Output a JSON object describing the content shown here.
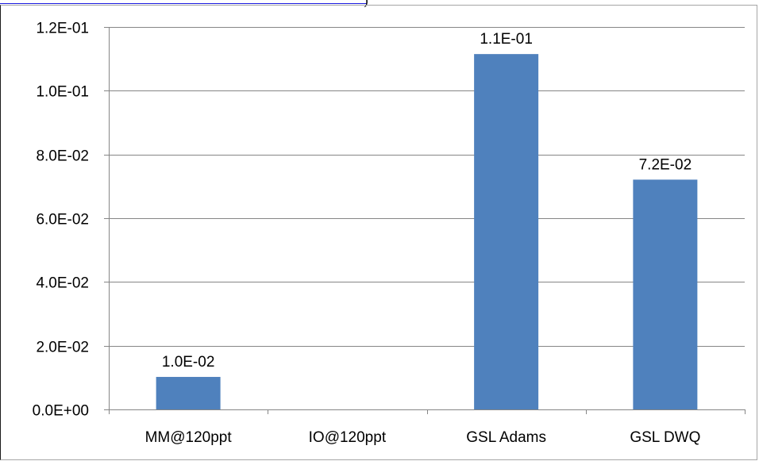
{
  "chart_data": {
    "type": "bar",
    "categories": [
      "MM@120ppt",
      "IO@120ppt",
      "GSL Adams",
      "GSL DWQ"
    ],
    "values": [
      0.0102,
      0,
      0.1115,
      0.0721
    ],
    "data_labels": [
      "1.0E-02",
      "",
      "1.1E-01",
      "7.2E-02"
    ],
    "y_ticks": [
      0,
      0.02,
      0.04,
      0.06,
      0.08,
      0.1,
      0.12
    ],
    "y_tick_labels": [
      "0.0E+00",
      "2.0E-02",
      "4.0E-02",
      "6.0E-02",
      "8.0E-02",
      "1.0E-01",
      "1.2E-01"
    ],
    "ylim": [
      0,
      0.12
    ],
    "title": "",
    "xlabel": "",
    "ylabel": "",
    "grid": true,
    "legend": "none",
    "colors": {
      "bar": "#4f81bd",
      "grid": "#868686",
      "axis": "#868686",
      "text": "#000000"
    }
  }
}
